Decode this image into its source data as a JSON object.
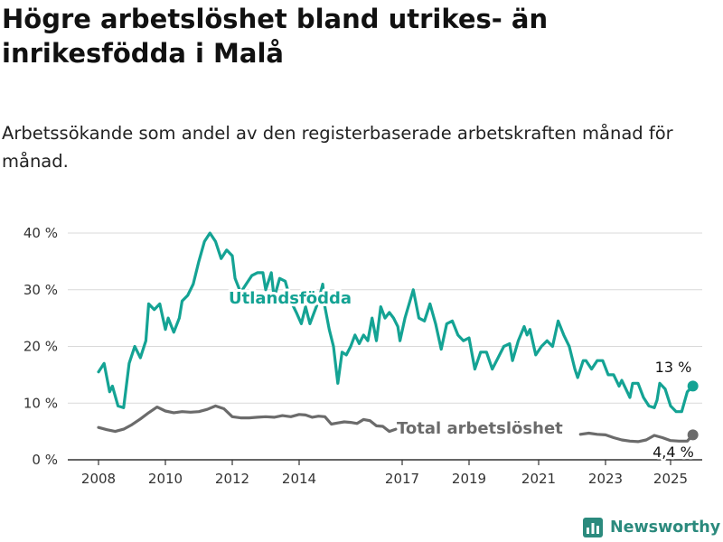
{
  "title": "Högre arbetslöshet bland utrikes- än inrikesfödda i Malå",
  "subtitle": "Arbetssökande som andel av den registerbaserade arbetskraften månad för månad.",
  "brand": {
    "name": "Newsworthy"
  },
  "colors": {
    "foreign": "#14a394",
    "total": "#6b6b6b",
    "grid": "#d9d9d9",
    "axis": "#333333"
  },
  "chart_data": {
    "type": "line",
    "title": "Högre arbetslöshet bland utrikes- än inrikesfödda i Malå",
    "subtitle": "Arbetssökande som andel av den registerbaserade arbetskraften månad för månad.",
    "xlabel": "",
    "ylabel": "",
    "x_ticks": [
      "2008",
      "2010",
      "2012",
      "2014",
      "2017",
      "2019",
      "2021",
      "2023",
      "2025"
    ],
    "y_ticks": [
      "0 %",
      "10 %",
      "20 %",
      "30 %",
      "40 %"
    ],
    "ylim": [
      0,
      40
    ],
    "grid": "horizontal",
    "series": [
      {
        "name": "Utlandsfödda",
        "end_label": "13 %",
        "points": [
          [
            "2008-01",
            15.5
          ],
          [
            "2008-03",
            17
          ],
          [
            "2008-05",
            12
          ],
          [
            "2008-06",
            13
          ],
          [
            "2008-08",
            9.5
          ],
          [
            "2008-10",
            9.2
          ],
          [
            "2008-12",
            17
          ],
          [
            "2009-02",
            20
          ],
          [
            "2009-04",
            18
          ],
          [
            "2009-06",
            21
          ],
          [
            "2009-07",
            27.5
          ],
          [
            "2009-09",
            26.5
          ],
          [
            "2009-11",
            27.5
          ],
          [
            "2010-01",
            23
          ],
          [
            "2010-02",
            25
          ],
          [
            "2010-04",
            22.5
          ],
          [
            "2010-06",
            25
          ],
          [
            "2010-07",
            28
          ],
          [
            "2010-09",
            29
          ],
          [
            "2010-11",
            31
          ],
          [
            "2011-01",
            35
          ],
          [
            "2011-03",
            38.5
          ],
          [
            "2011-05",
            40
          ],
          [
            "2011-07",
            38.5
          ],
          [
            "2011-09",
            35.5
          ],
          [
            "2011-11",
            37
          ],
          [
            "2012-01",
            36
          ],
          [
            "2012-02",
            32
          ],
          [
            "2012-04",
            29.5
          ],
          [
            "2012-06",
            31
          ],
          [
            "2012-08",
            32.5
          ],
          [
            "2012-10",
            33
          ],
          [
            "2012-12",
            33
          ],
          [
            "2013-01",
            30
          ],
          [
            "2013-03",
            33
          ],
          [
            "2013-04",
            28.5
          ],
          [
            "2013-06",
            32
          ],
          [
            "2013-08",
            31.5
          ],
          [
            "2013-10",
            28
          ],
          [
            "2013-12",
            26
          ],
          [
            "2014-02",
            24
          ],
          [
            "2014-04",
            27
          ],
          [
            "2014-06",
            24
          ],
          [
            "2014-08",
            26
          ],
          [
            "2014-10",
            28
          ],
          [
            "2014-12",
            31
          ],
          [
            "2015-01",
            27
          ],
          [
            "2015-03",
            23
          ],
          [
            "2015-05",
            20
          ],
          [
            "2015-07",
            13.5
          ],
          [
            "2015-09",
            19
          ],
          [
            "2015-11",
            18.5
          ],
          [
            "2016-01",
            20
          ],
          [
            "2016-03",
            22
          ],
          [
            "2016-05",
            20.5
          ],
          [
            "2016-07",
            22
          ],
          [
            "2016-09",
            21
          ],
          [
            "2016-11",
            25
          ],
          [
            "2017-01",
            21
          ],
          [
            "2017-03",
            27
          ],
          [
            "2017-05",
            25
          ],
          [
            "2017-07",
            26
          ],
          [
            "2017-09",
            25
          ],
          [
            "2017-11",
            23.5
          ],
          [
            "2017-12",
            21
          ],
          [
            "2018-02",
            25
          ],
          [
            "2018-05",
            30
          ],
          [
            "2018-07",
            25
          ],
          [
            "2018-09",
            24.5
          ],
          [
            "2018-11",
            27.5
          ],
          [
            "2019-01",
            24
          ],
          [
            "2019-03",
            19.5
          ],
          [
            "2019-05",
            24
          ],
          [
            "2019-07",
            24.5
          ],
          [
            "2019-09",
            22
          ],
          [
            "2019-11",
            21
          ],
          [
            "2020-01",
            21.5
          ],
          [
            "2020-03",
            16
          ],
          [
            "2020-05",
            19
          ],
          [
            "2020-07",
            19
          ],
          [
            "2020-09",
            16
          ],
          [
            "2020-11",
            18
          ],
          [
            "2021-01",
            20
          ],
          [
            "2021-03",
            20.5
          ],
          [
            "2021-04",
            17.5
          ],
          [
            "2021-06",
            21
          ],
          [
            "2021-08",
            23.5
          ],
          [
            "2021-09",
            22
          ],
          [
            "2021-10",
            23
          ],
          [
            "2021-12",
            18.5
          ],
          [
            "2022-02",
            20
          ],
          [
            "2022-04",
            21
          ],
          [
            "2022-06",
            20
          ],
          [
            "2022-08",
            24.5
          ],
          [
            "2022-10",
            22
          ],
          [
            "2022-12",
            20
          ],
          [
            "2023-02",
            16
          ],
          [
            "2023-03",
            14.5
          ],
          [
            "2023-05",
            17.5
          ],
          [
            "2023-06",
            17.5
          ],
          [
            "2023-08",
            16
          ],
          [
            "2023-10",
            17.5
          ],
          [
            "2023-12",
            17.5
          ],
          [
            "2024-02",
            15
          ],
          [
            "2024-04",
            15
          ],
          [
            "2024-06",
            13
          ],
          [
            "2024-07",
            14
          ],
          [
            "2024-09",
            12
          ],
          [
            "2024-10",
            11
          ],
          [
            "2024-11",
            13.5
          ],
          [
            "2025-01",
            13.5
          ],
          [
            "2025-03",
            11
          ],
          [
            "2025-05",
            9.5
          ],
          [
            "2025-07",
            9.2
          ],
          [
            "2025-08",
            10.5
          ],
          [
            "2025-09",
            13.5
          ],
          [
            "2025-11",
            12.5
          ],
          [
            "2026-01",
            9.5
          ],
          [
            "2026-03",
            8.5
          ],
          [
            "2026-05",
            8.5
          ],
          [
            "2026-07",
            12
          ],
          [
            "2026-09",
            13
          ]
        ]
      },
      {
        "name": "Total arbetslöshet",
        "end_label": "4,4 %",
        "points": [
          [
            "2008-01",
            5.7
          ],
          [
            "2008-04",
            5.3
          ],
          [
            "2008-07",
            5
          ],
          [
            "2008-10",
            5.4
          ],
          [
            "2009-01",
            6.2
          ],
          [
            "2009-04",
            7.2
          ],
          [
            "2009-07",
            8.3
          ],
          [
            "2009-10",
            9.3
          ],
          [
            "2010-01",
            8.6
          ],
          [
            "2010-04",
            8.3
          ],
          [
            "2010-07",
            8.5
          ],
          [
            "2010-10",
            8.4
          ],
          [
            "2011-01",
            8.5
          ],
          [
            "2011-04",
            8.9
          ],
          [
            "2011-07",
            9.5
          ],
          [
            "2011-10",
            9
          ],
          [
            "2012-01",
            7.6
          ],
          [
            "2012-04",
            7.4
          ],
          [
            "2012-07",
            7.4
          ],
          [
            "2012-10",
            7.5
          ],
          [
            "2013-01",
            7.6
          ],
          [
            "2013-04",
            7.5
          ],
          [
            "2013-07",
            7.8
          ],
          [
            "2013-10",
            7.6
          ],
          [
            "2014-01",
            8
          ],
          [
            "2014-04",
            7.9
          ],
          [
            "2014-07",
            7.5
          ],
          [
            "2014-10",
            7.7
          ],
          [
            "2015-01",
            7.6
          ],
          [
            "2015-04",
            6.3
          ],
          [
            "2015-07",
            6.5
          ],
          [
            "2015-10",
            6.7
          ],
          [
            "2016-01",
            6.6
          ],
          [
            "2016-04",
            6.4
          ],
          [
            "2016-07",
            7.1
          ],
          [
            "2016-10",
            6.9
          ],
          [
            "2017-01",
            6
          ],
          [
            "2017-04",
            5.9
          ],
          [
            "2017-07",
            5
          ],
          [
            "2017-10",
            5.4
          ]
        ],
        "points_end": [
          [
            "2023-04",
            4.5
          ],
          [
            "2023-07",
            4.7
          ],
          [
            "2023-10",
            4.5
          ],
          [
            "2024-01",
            4.4
          ],
          [
            "2024-04",
            3.9
          ],
          [
            "2024-07",
            3.5
          ],
          [
            "2024-10",
            3.3
          ],
          [
            "2025-01",
            3.2
          ],
          [
            "2025-04",
            3.5
          ],
          [
            "2025-07",
            4.3
          ],
          [
            "2025-10",
            3.9
          ],
          [
            "2026-01",
            3.4
          ],
          [
            "2026-04",
            3.3
          ],
          [
            "2026-07",
            3.3
          ],
          [
            "2026-09",
            4.4
          ]
        ]
      }
    ]
  }
}
